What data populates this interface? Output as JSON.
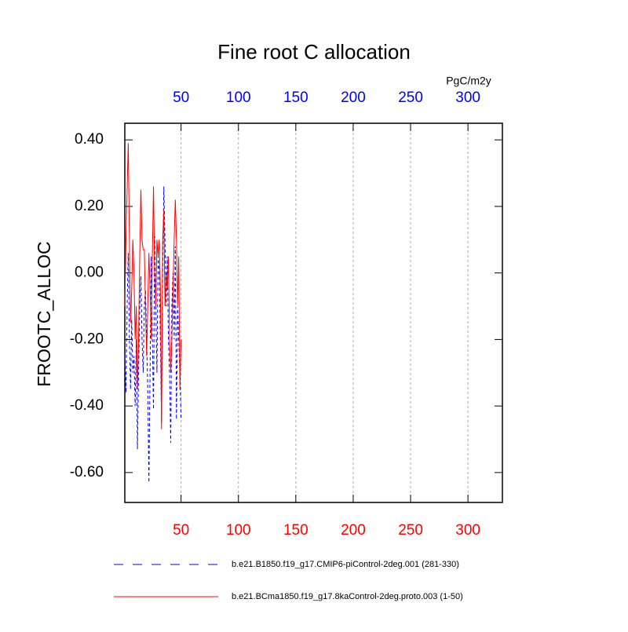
{
  "chart_data": {
    "type": "line",
    "title": "Fine root C allocation",
    "ylabel": "FROOTC_ALLOC",
    "x2label": "PgC/m2y",
    "x": [
      1,
      2,
      3,
      4,
      5,
      6,
      7,
      8,
      9,
      10,
      11,
      12,
      13,
      14,
      15,
      16,
      17,
      18,
      19,
      20,
      21,
      22,
      23,
      24,
      25,
      26,
      27,
      28,
      29,
      30,
      31,
      32,
      33,
      34,
      35,
      36,
      37,
      38,
      39,
      40,
      41,
      42,
      43,
      44,
      45,
      46,
      47,
      48,
      49,
      50
    ],
    "xlim": [
      1,
      330
    ],
    "xticks": [
      50,
      100,
      150,
      200,
      250,
      300
    ],
    "xtick_color": "#ff0000",
    "x2ticks": [
      50,
      100,
      150,
      200,
      250,
      300
    ],
    "x2tick_color": "#0000ff",
    "ylim": [
      -0.69,
      0.45
    ],
    "yticks": [
      {
        "value": -0.6,
        "label": "-0.60"
      },
      {
        "value": -0.4,
        "label": "-0.40"
      },
      {
        "value": -0.2,
        "label": "-0.20"
      },
      {
        "value": 0,
        "label": "0.00"
      },
      {
        "value": 0.2,
        "label": "0.20"
      },
      {
        "value": 0.4,
        "label": "0.40"
      }
    ],
    "xgrid": true,
    "series": [
      {
        "name": "b.e21.B1850.f19_g17.CMIP6-piControl-2deg.001 (281-330)",
        "color": "#0000ff",
        "dash": true,
        "values": [
          -0.25,
          -0.36,
          -0.1,
          0.06,
          -0.2,
          -0.35,
          -0.14,
          -0.3,
          -0.25,
          -0.4,
          -0.2,
          -0.53,
          -0.3,
          -0.1,
          -0.01,
          -0.2,
          -0.3,
          -0.1,
          -0.05,
          -0.2,
          -0.35,
          -0.63,
          -0.3,
          0.05,
          -0.2,
          -0.41,
          0.11,
          -0.1,
          -0.3,
          0.05,
          0.0,
          -0.2,
          -0.45,
          0.0,
          0.26,
          0.1,
          -0.1,
          0.05,
          -0.2,
          -0.3,
          -0.51,
          -0.1,
          0.0,
          -0.2,
          0.08,
          -0.44,
          -0.1,
          -0.2,
          -0.3,
          -0.44
        ]
      },
      {
        "name": "b.e21.BCma1850.f19_g17.8kaControl-2deg.proto.003 (1-50)",
        "color": "#ff0000",
        "dash": false,
        "values": [
          -0.1,
          0.1,
          0.25,
          0.39,
          0.1,
          -0.15,
          -0.05,
          0.1,
          0.0,
          -0.2,
          -0.1,
          -0.35,
          -0.2,
          0.05,
          0.25,
          0.1,
          0.07,
          0.07,
          -0.1,
          -0.25,
          -0.1,
          0.06,
          -0.05,
          -0.2,
          0.05,
          0.26,
          0.0,
          -0.1,
          0.1,
          0.05,
          0.1,
          -0.05,
          -0.47,
          0.1,
          0.19,
          -0.1,
          0.0,
          -0.05,
          0.05,
          -0.2,
          -0.3,
          -0.2,
          -0.05,
          0.1,
          0.22,
          0.1,
          -0.1,
          0.05,
          -0.35,
          -0.2
        ]
      }
    ]
  }
}
